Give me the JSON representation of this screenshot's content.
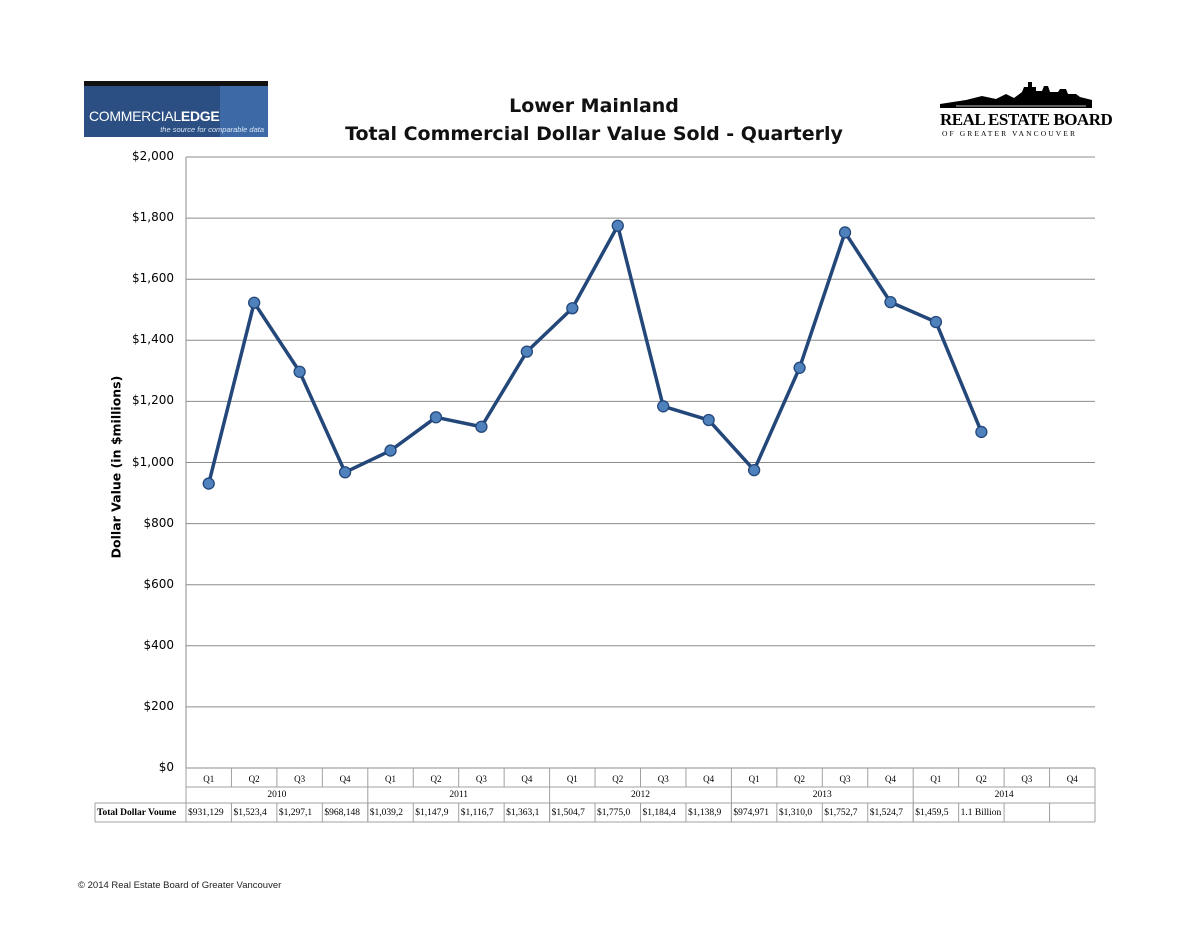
{
  "logos": {
    "left_brand_a": "COMMERCIAL",
    "left_brand_b": "EDGE",
    "left_tagline": "the source for comparable data",
    "right_name": "REAL ESTATE BOARD",
    "right_sub": "OF GREATER VANCOUVER"
  },
  "footer": {
    "copyright": "© 2014 Real Estate Board of Greater Vancouver"
  },
  "chart_data": {
    "type": "line",
    "title_line1": "Lower Mainland",
    "title_line2": "Total Commercial Dollar Value Sold - Quarterly",
    "ylabel": "Dollar Value (in $millions)",
    "xlabel": "",
    "ylim": [
      0,
      2000
    ],
    "yticks": [
      "$0",
      "$200",
      "$400",
      "$600",
      "$800",
      "$1,000",
      "$1,200",
      "$1,400",
      "$1,600",
      "$1,800",
      "$2,000"
    ],
    "grid": true,
    "line_color": "#24477a",
    "marker_color": "#4f81bd",
    "quarters": [
      "Q1",
      "Q2",
      "Q3",
      "Q4",
      "Q1",
      "Q2",
      "Q3",
      "Q4",
      "Q1",
      "Q2",
      "Q3",
      "Q4",
      "Q1",
      "Q2",
      "Q3",
      "Q4",
      "Q1",
      "Q2",
      "Q3",
      "Q4"
    ],
    "years": [
      "2010",
      "2011",
      "2012",
      "2013",
      "2014"
    ],
    "values": [
      931,
      1523,
      1297,
      968,
      1039,
      1148,
      1117,
      1363,
      1505,
      1775,
      1184,
      1139,
      975,
      1310,
      1753,
      1525,
      1460,
      1100,
      null,
      null
    ],
    "table_row_label": "Total Dollar Voume",
    "table_values": [
      "$931,129",
      "$1,523,4",
      "$1,297,1",
      "$968,148",
      "$1,039,2",
      "$1,147,9",
      "$1,116,7",
      "$1,363,1",
      "$1,504,7",
      "$1,775,0",
      "$1,184,4",
      "$1,138,9",
      "$974,971",
      "$1,310,0",
      "$1,752,7",
      "$1,524,7",
      "$1,459,5",
      "1.1 Billion",
      "",
      ""
    ]
  }
}
